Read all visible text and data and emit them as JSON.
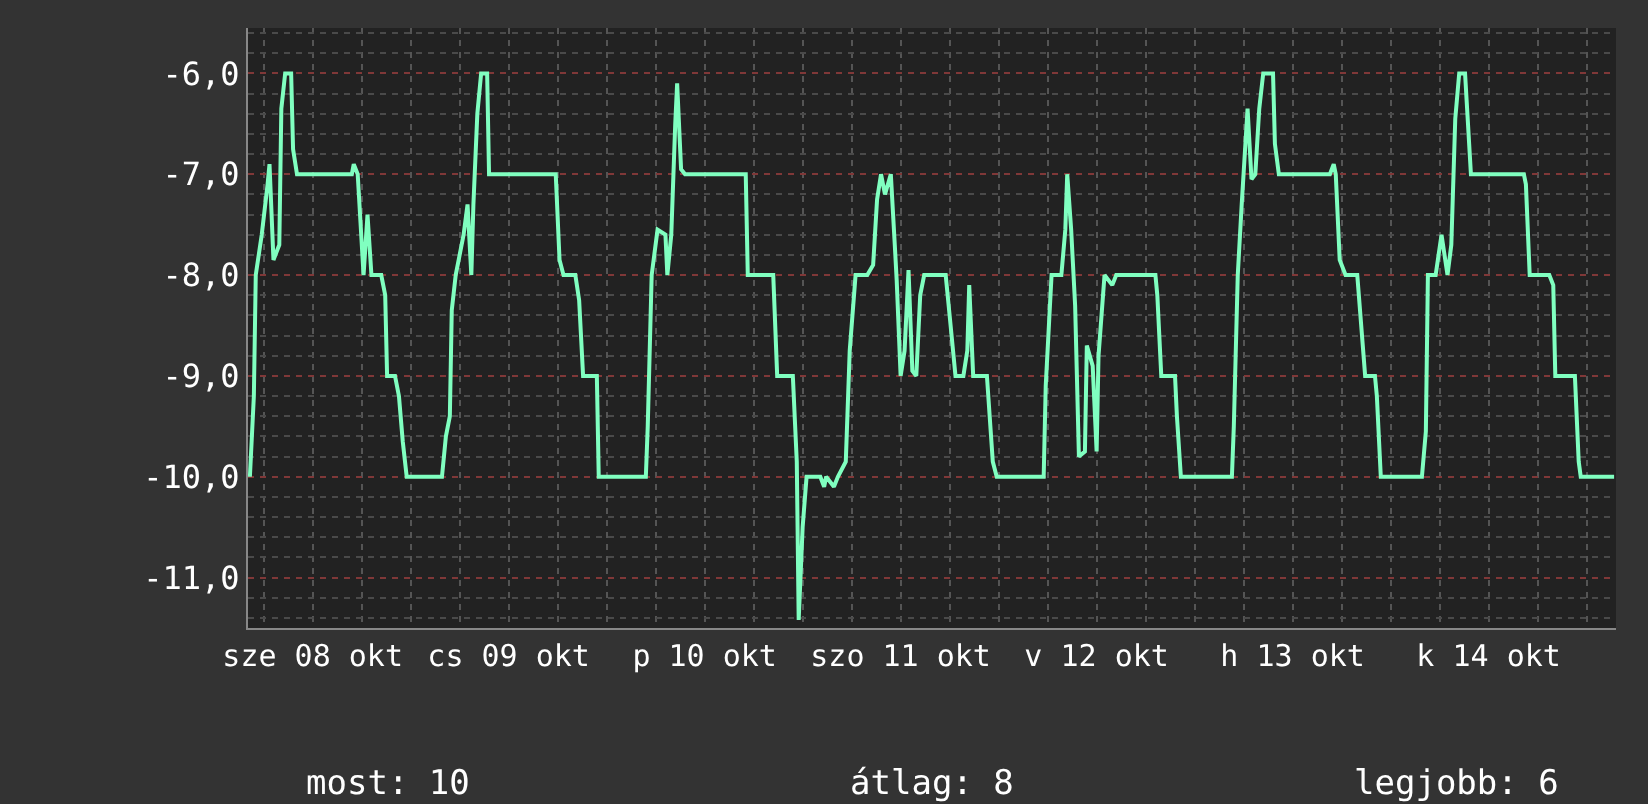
{
  "chart_data": {
    "type": "line",
    "x": [
      "--10-08T04:19",
      "--10-08T04:48",
      "--10-08T05:02",
      "--10-08T05:46",
      "--10-08T06:29",
      "--10-08T06:43",
      "--10-08T07:12",
      "--10-08T07:55",
      "--10-08T08:10",
      "--10-08T08:38",
      "--10-08T09:22",
      "--10-08T09:36",
      "--10-08T10:05",
      "--10-08T16:48",
      "--10-08T17:02",
      "--10-08T17:31",
      "--10-08T18:14",
      "--10-08T18:43",
      "--10-08T19:12",
      "--10-08T20:24",
      "--10-08T20:53",
      "--10-08T21:07",
      "--10-08T22:05",
      "--10-08T22:34",
      "--10-08T23:02",
      "--10-08T23:31",
      "--10-09T03:50",
      "--10-09T04:19",
      "--10-09T04:48",
      "--10-09T05:02",
      "--10-09T05:31",
      "--10-09T06:29",
      "--10-09T06:58",
      "--10-09T07:26",
      "--10-09T07:41",
      "--10-09T08:10",
      "--10-09T08:38",
      "--10-09T09:22",
      "--10-09T09:36",
      "--10-09T17:46",
      "--10-09T18:14",
      "--10-09T18:43",
      "--10-09T20:10",
      "--10-09T20:38",
      "--10-09T21:07",
      "--10-09T22:48",
      "--10-09T23:02",
      "--10-10T04:48",
      "--10-10T05:02",
      "--10-10T05:31",
      "--10-10T06:14",
      "--10-10T07:12",
      "--10-10T07:26",
      "--10-10T07:55",
      "--10-10T08:24",
      "--10-10T08:38",
      "--10-10T09:07",
      "--10-10T09:36",
      "--10-10T17:02",
      "--10-10T17:17",
      "--10-10T20:24",
      "--10-10T20:53",
      "--10-10T22:48",
      "--10-10T23:17",
      "--10-10T23:31",
      "--10-11T00:00",
      "--10-11T00:29",
      "--10-11T02:10",
      "--10-11T02:38",
      "--10-11T02:53",
      "--10-11T03:50",
      "--10-11T04:19",
      "--10-11T05:17",
      "--10-11T05:46",
      "--10-11T06:29",
      "--10-11T07:55",
      "--10-11T08:38",
      "--10-11T09:07",
      "--10-11T09:36",
      "--10-11T10:05",
      "--10-11T10:48",
      "--10-11T11:17",
      "--10-11T11:31",
      "--10-11T12:00",
      "--10-11T12:29",
      "--10-11T12:58",
      "--10-11T13:26",
      "--10-11T13:55",
      "--10-11T14:24",
      "--10-11T14:53",
      "--10-11T17:31",
      "--10-11T18:00",
      "--10-11T18:43",
      "--10-11T19:41",
      "--10-11T20:10",
      "--10-11T20:24",
      "--10-11T20:53",
      "--10-11T22:34",
      "--10-11T23:17",
      "--10-11T23:46",
      "--10-12T05:31",
      "--10-12T05:46",
      "--10-12T06:29",
      "--10-12T07:41",
      "--10-12T08:10",
      "--10-12T08:24",
      "--10-12T08:53",
      "--10-12T09:22",
      "--10-12T09:50",
      "--10-12T10:34",
      "--10-12T10:48",
      "--10-12T11:31",
      "--10-12T12:00",
      "--10-12T12:14",
      "--10-12T12:58",
      "--10-12T13:55",
      "--10-12T14:24",
      "--10-12T19:12",
      "--10-12T19:26",
      "--10-12T19:55",
      "--10-12T21:36",
      "--10-12T21:50",
      "--10-12T22:19",
      "--10-13T04:34",
      "--10-13T04:48",
      "--10-13T05:17",
      "--10-13T05:46",
      "--10-13T06:29",
      "--10-13T06:58",
      "--10-13T07:26",
      "--10-13T07:55",
      "--10-13T08:24",
      "--10-13T09:36",
      "--10-13T09:50",
      "--10-13T10:19",
      "--10-13T16:34",
      "--10-13T17:02",
      "--10-13T17:17",
      "--10-13T17:46",
      "--10-13T18:29",
      "--10-13T19:55",
      "--10-13T20:53",
      "--10-13T22:05",
      "--10-13T22:19",
      "--10-13T22:48",
      "--10-14T03:50",
      "--10-14T04:19",
      "--10-14T04:34",
      "--10-14T05:31",
      "--10-14T06:14",
      "--10-14T06:58",
      "--10-14T07:26",
      "--10-14T07:55",
      "--10-14T08:24",
      "--10-14T09:07",
      "--10-14T09:22",
      "--10-14T09:50",
      "--10-14T16:19",
      "--10-14T16:34",
      "--10-14T17:02",
      "--10-14T19:26",
      "--10-14T19:55",
      "--10-14T20:10",
      "--10-14T22:34",
      "--10-14T23:02",
      "--10-14T23:17",
      "--10-15T03:22"
    ],
    "series": [
      {
        "color": "#80ffc0",
        "values": [
          -10,
          -9.2,
          -8.0,
          -7.6,
          -7.1,
          -6.9,
          -7.85,
          -7.7,
          -6.35,
          -6.0,
          -6.0,
          -6.75,
          -7.0,
          -7.0,
          -6.9,
          -7.0,
          -8.0,
          -7.4,
          -8.0,
          -8.0,
          -8.2,
          -9.0,
          -9.0,
          -9.2,
          -9.65,
          -10,
          -10,
          -9.6,
          -9.4,
          -8.35,
          -8.0,
          -7.6,
          -7.3,
          -8.0,
          -7.3,
          -6.4,
          -6.0,
          -6.0,
          -7.0,
          -7.0,
          -7.85,
          -8.0,
          -8.0,
          -8.25,
          -9.0,
          -9.0,
          -10,
          -10,
          -9.5,
          -8.0,
          -7.55,
          -7.6,
          -8.0,
          -7.6,
          -6.5,
          -6.1,
          -6.95,
          -7.0,
          -7.0,
          -8.0,
          -8.0,
          -9.0,
          -9.0,
          -9.85,
          -11.42,
          -10.5,
          -10.0,
          -10.0,
          -10.1,
          -10.0,
          -10.1,
          -10.0,
          -9.85,
          -8.75,
          -8.0,
          -8.0,
          -7.9,
          -7.25,
          -7.0,
          -7.2,
          -7.0,
          -7.7,
          -8.05,
          -9.0,
          -8.75,
          -7.95,
          -8.95,
          -9.0,
          -8.2,
          -8.0,
          -8.0,
          -8.4,
          -9.0,
          -9.0,
          -8.75,
          -8.1,
          -9.0,
          -9.0,
          -9.85,
          -10,
          -10,
          -9.1,
          -8.0,
          -8.0,
          -7.55,
          -7.0,
          -7.55,
          -8.3,
          -9.8,
          -9.75,
          -8.7,
          -8.9,
          -9.75,
          -8.8,
          -8.0,
          -8.1,
          -8.0,
          -8.0,
          -8.2,
          -9.0,
          -9.0,
          -9.4,
          -10,
          -10,
          -9.5,
          -8.0,
          -7.3,
          -6.35,
          -7.05,
          -7.0,
          -6.35,
          -6.0,
          -6.0,
          -6.7,
          -7.0,
          -7.0,
          -6.9,
          -7.0,
          -7.85,
          -8.0,
          -8.0,
          -9.0,
          -9.0,
          -9.2,
          -10,
          -10,
          -9.55,
          -8.0,
          -8.0,
          -7.6,
          -8.0,
          -7.7,
          -6.45,
          -6.0,
          -6.0,
          -6.35,
          -7.0,
          -7.0,
          -7.1,
          -8.0,
          -8.0,
          -8.1,
          -9.0,
          -9.0,
          -9.85,
          -10,
          -10
        ]
      }
    ],
    "xlim": [
      "--10-08T04:05",
      "--10-15T03:36"
    ],
    "xticks": [
      {
        "value": "--10-08T12:00",
        "label": "sze 08 okt"
      },
      {
        "value": "--10-09T12:00",
        "label": "cs 09 okt"
      },
      {
        "value": "--10-10T12:00",
        "label": "p 10 okt"
      },
      {
        "value": "--10-11T12:00",
        "label": "szo 11 okt"
      },
      {
        "value": "--10-12T12:00",
        "label": "v 12 okt"
      },
      {
        "value": "--10-13T12:00",
        "label": "h 13 okt"
      },
      {
        "value": "--10-14T12:00",
        "label": "k 14 okt"
      }
    ],
    "ylim": [
      -11.5,
      -5.55
    ],
    "yticks": [
      {
        "value": -6,
        "label": "-6,0"
      },
      {
        "value": -7,
        "label": "-7,0"
      },
      {
        "value": -8,
        "label": "-8,0"
      },
      {
        "value": -9,
        "label": "-9,0"
      },
      {
        "value": -10,
        "label": "-10,0"
      },
      {
        "value": -11,
        "label": "-11,0"
      }
    ],
    "grid": true,
    "marker": "none",
    "line_style": "solid",
    "annotations": [
      "most: 10",
      "átlag: 8",
      "legjobb: 6"
    ]
  }
}
